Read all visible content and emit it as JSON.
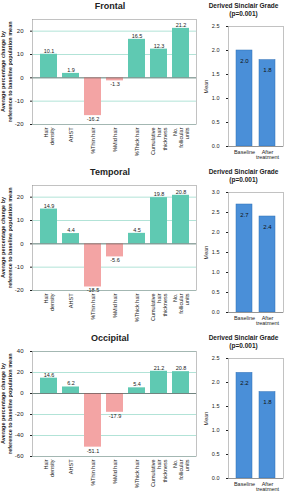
{
  "chart_data": [
    {
      "type": "bar",
      "title": "Frontal",
      "ylabel": "Average percentage change by reference to baseline population mean",
      "categories": [
        "Hair density",
        "AHST",
        "%Thin hair",
        "%Mid hair",
        "%Thick hair",
        "Cumulative hair thickness",
        "No. follicular units"
      ],
      "values": [
        10.1,
        1.9,
        -16.2,
        -1.3,
        16.5,
        12.3,
        21.2
      ],
      "colors": [
        "#5fc9b2",
        "#5fc9b2",
        "#f3a4a4",
        "#f3a4a4",
        "#5fc9b2",
        "#5fc9b2",
        "#5fc9b2"
      ],
      "ylim": [
        -20,
        25
      ],
      "yticks": [
        -20,
        -10,
        0,
        10,
        20
      ],
      "grid": true,
      "data_labels": true
    },
    {
      "type": "bar",
      "title": "Derived Sinclair Grade",
      "subtitle": "(p=0.001)",
      "ylabel": "Mean",
      "categories": [
        "Baseline",
        "After treatment"
      ],
      "values": [
        2.0,
        1.8
      ],
      "value_labels": [
        "2.0",
        "1.8"
      ],
      "color": "#4a8fd8",
      "ylim": [
        0,
        2.5
      ],
      "yticks": [
        {
          "value": 0,
          "label": "0.0"
        },
        {
          "value": 0.5,
          "label": "0.5"
        },
        {
          "value": 1,
          "label": "1.0"
        },
        {
          "value": 1.5,
          "label": "1.5"
        },
        {
          "value": 2,
          "label": "2.0"
        },
        {
          "value": 2.5,
          "label": "2.5"
        }
      ],
      "data_labels": true
    },
    {
      "type": "bar",
      "title": "Temporal",
      "ylabel": "Average percentage change by reference to baseline population mean",
      "categories": [
        "Hair density",
        "AHST",
        "%Thin hair",
        "%Mid hair",
        "%Thick hair",
        "Cumulative hair thickness",
        "No. follicular units"
      ],
      "values": [
        14.9,
        4.4,
        -18.5,
        -5.6,
        4.5,
        19.8,
        20.8
      ],
      "colors": [
        "#5fc9b2",
        "#5fc9b2",
        "#f3a4a4",
        "#f3a4a4",
        "#5fc9b2",
        "#5fc9b2",
        "#5fc9b2"
      ],
      "ylim": [
        -20,
        25
      ],
      "yticks": [
        -20,
        -10,
        0,
        10,
        20
      ],
      "grid": true,
      "data_labels": true
    },
    {
      "type": "bar",
      "title": "Derived Sinclair Grade",
      "subtitle": "(p=0.001)",
      "ylabel": "Mean",
      "categories": [
        "Baseline",
        "After treatment"
      ],
      "values": [
        2.7,
        2.4
      ],
      "value_labels": [
        "2.7",
        "2.4"
      ],
      "color": "#4a8fd8",
      "ylim": [
        0,
        3
      ],
      "yticks": [
        {
          "value": 0,
          "label": "0.0"
        },
        {
          "value": 0.5,
          "label": "0.5"
        },
        {
          "value": 1,
          "label": "1.0"
        },
        {
          "value": 1.5,
          "label": "1.5"
        },
        {
          "value": 2,
          "label": "2.0"
        },
        {
          "value": 2.5,
          "label": "2.5"
        },
        {
          "value": 3,
          "label": "3.0"
        }
      ],
      "data_labels": true
    },
    {
      "type": "bar",
      "title": "Occipital",
      "ylabel": "Average percentage change by reference to baseline population mean",
      "categories": [
        "Hair density",
        "AHST",
        "%Thin hair",
        "%Mid hair",
        "%Thick hair",
        "Cumulative hair thickness",
        "No. follicular units"
      ],
      "values": [
        14.6,
        6.2,
        -51.1,
        -17.9,
        5.4,
        21.2,
        20.8
      ],
      "colors": [
        "#5fc9b2",
        "#5fc9b2",
        "#f3a4a4",
        "#f3a4a4",
        "#5fc9b2",
        "#5fc9b2",
        "#5fc9b2"
      ],
      "ylim": [
        -60,
        40
      ],
      "yticks": [
        -60,
        -40,
        -20,
        0,
        20,
        40
      ],
      "grid": true,
      "data_labels": true
    },
    {
      "type": "bar",
      "title": "Derived Sinclair Grade",
      "subtitle": "(p=0.001)",
      "ylabel": "Mean",
      "categories": [
        "Baseline",
        "After treatment"
      ],
      "values": [
        2.2,
        1.8
      ],
      "value_labels": [
        "2.2",
        "1.8"
      ],
      "color": "#4a8fd8",
      "ylim": [
        0,
        2.5
      ],
      "yticks": [
        {
          "value": 0,
          "label": "0.0"
        },
        {
          "value": 0.5,
          "label": "0.5"
        },
        {
          "value": 1,
          "label": "1.0"
        },
        {
          "value": 1.5,
          "label": "1.5"
        },
        {
          "value": 2,
          "label": "2.0"
        },
        {
          "value": 2.5,
          "label": "2.5"
        }
      ],
      "data_labels": true
    }
  ]
}
